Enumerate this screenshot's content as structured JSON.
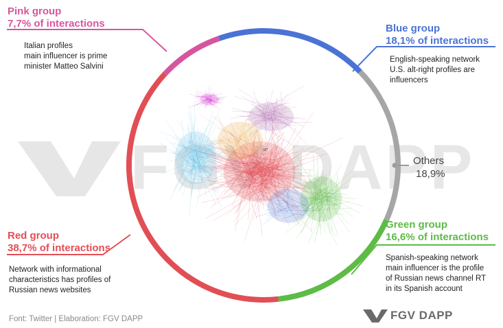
{
  "groups": {
    "pink": {
      "name": "Pink group",
      "share": "7,7% of interactions",
      "desc": "Italian profiles\nmain influencer is prime\nminister Matteo Salvini",
      "color": "#d6569e",
      "pct": 7.7
    },
    "blue": {
      "name": "Blue group",
      "share": "18,1% of interactions",
      "desc": "English-speaking network\nU.S. alt-right profiles are\ninfluencers",
      "color": "#4b73d6",
      "pct": 18.1
    },
    "others": {
      "name": "Others",
      "share": "18,9%",
      "color": "#a6a6a6",
      "pct": 18.9
    },
    "green": {
      "name": "Green group",
      "share": "16,6% of interactions",
      "desc": "Spanish-speaking network\nmain influencer is the profile\nof Russian news channel RT\nin its Spanish account",
      "color": "#5dbb46",
      "pct": 16.6
    },
    "red": {
      "name": "Red group",
      "share": "38,7% of interactions",
      "desc": "Network with informational\ncharacteristics has profiles of\nRussian news websites",
      "color": "#e24e55",
      "pct": 38.7
    }
  },
  "source": "Font: Twitter | Elaboration: FGV DAPP",
  "brand": "FGV DAPP",
  "watermark": "FGV DAPP",
  "center_label": "RT"
}
